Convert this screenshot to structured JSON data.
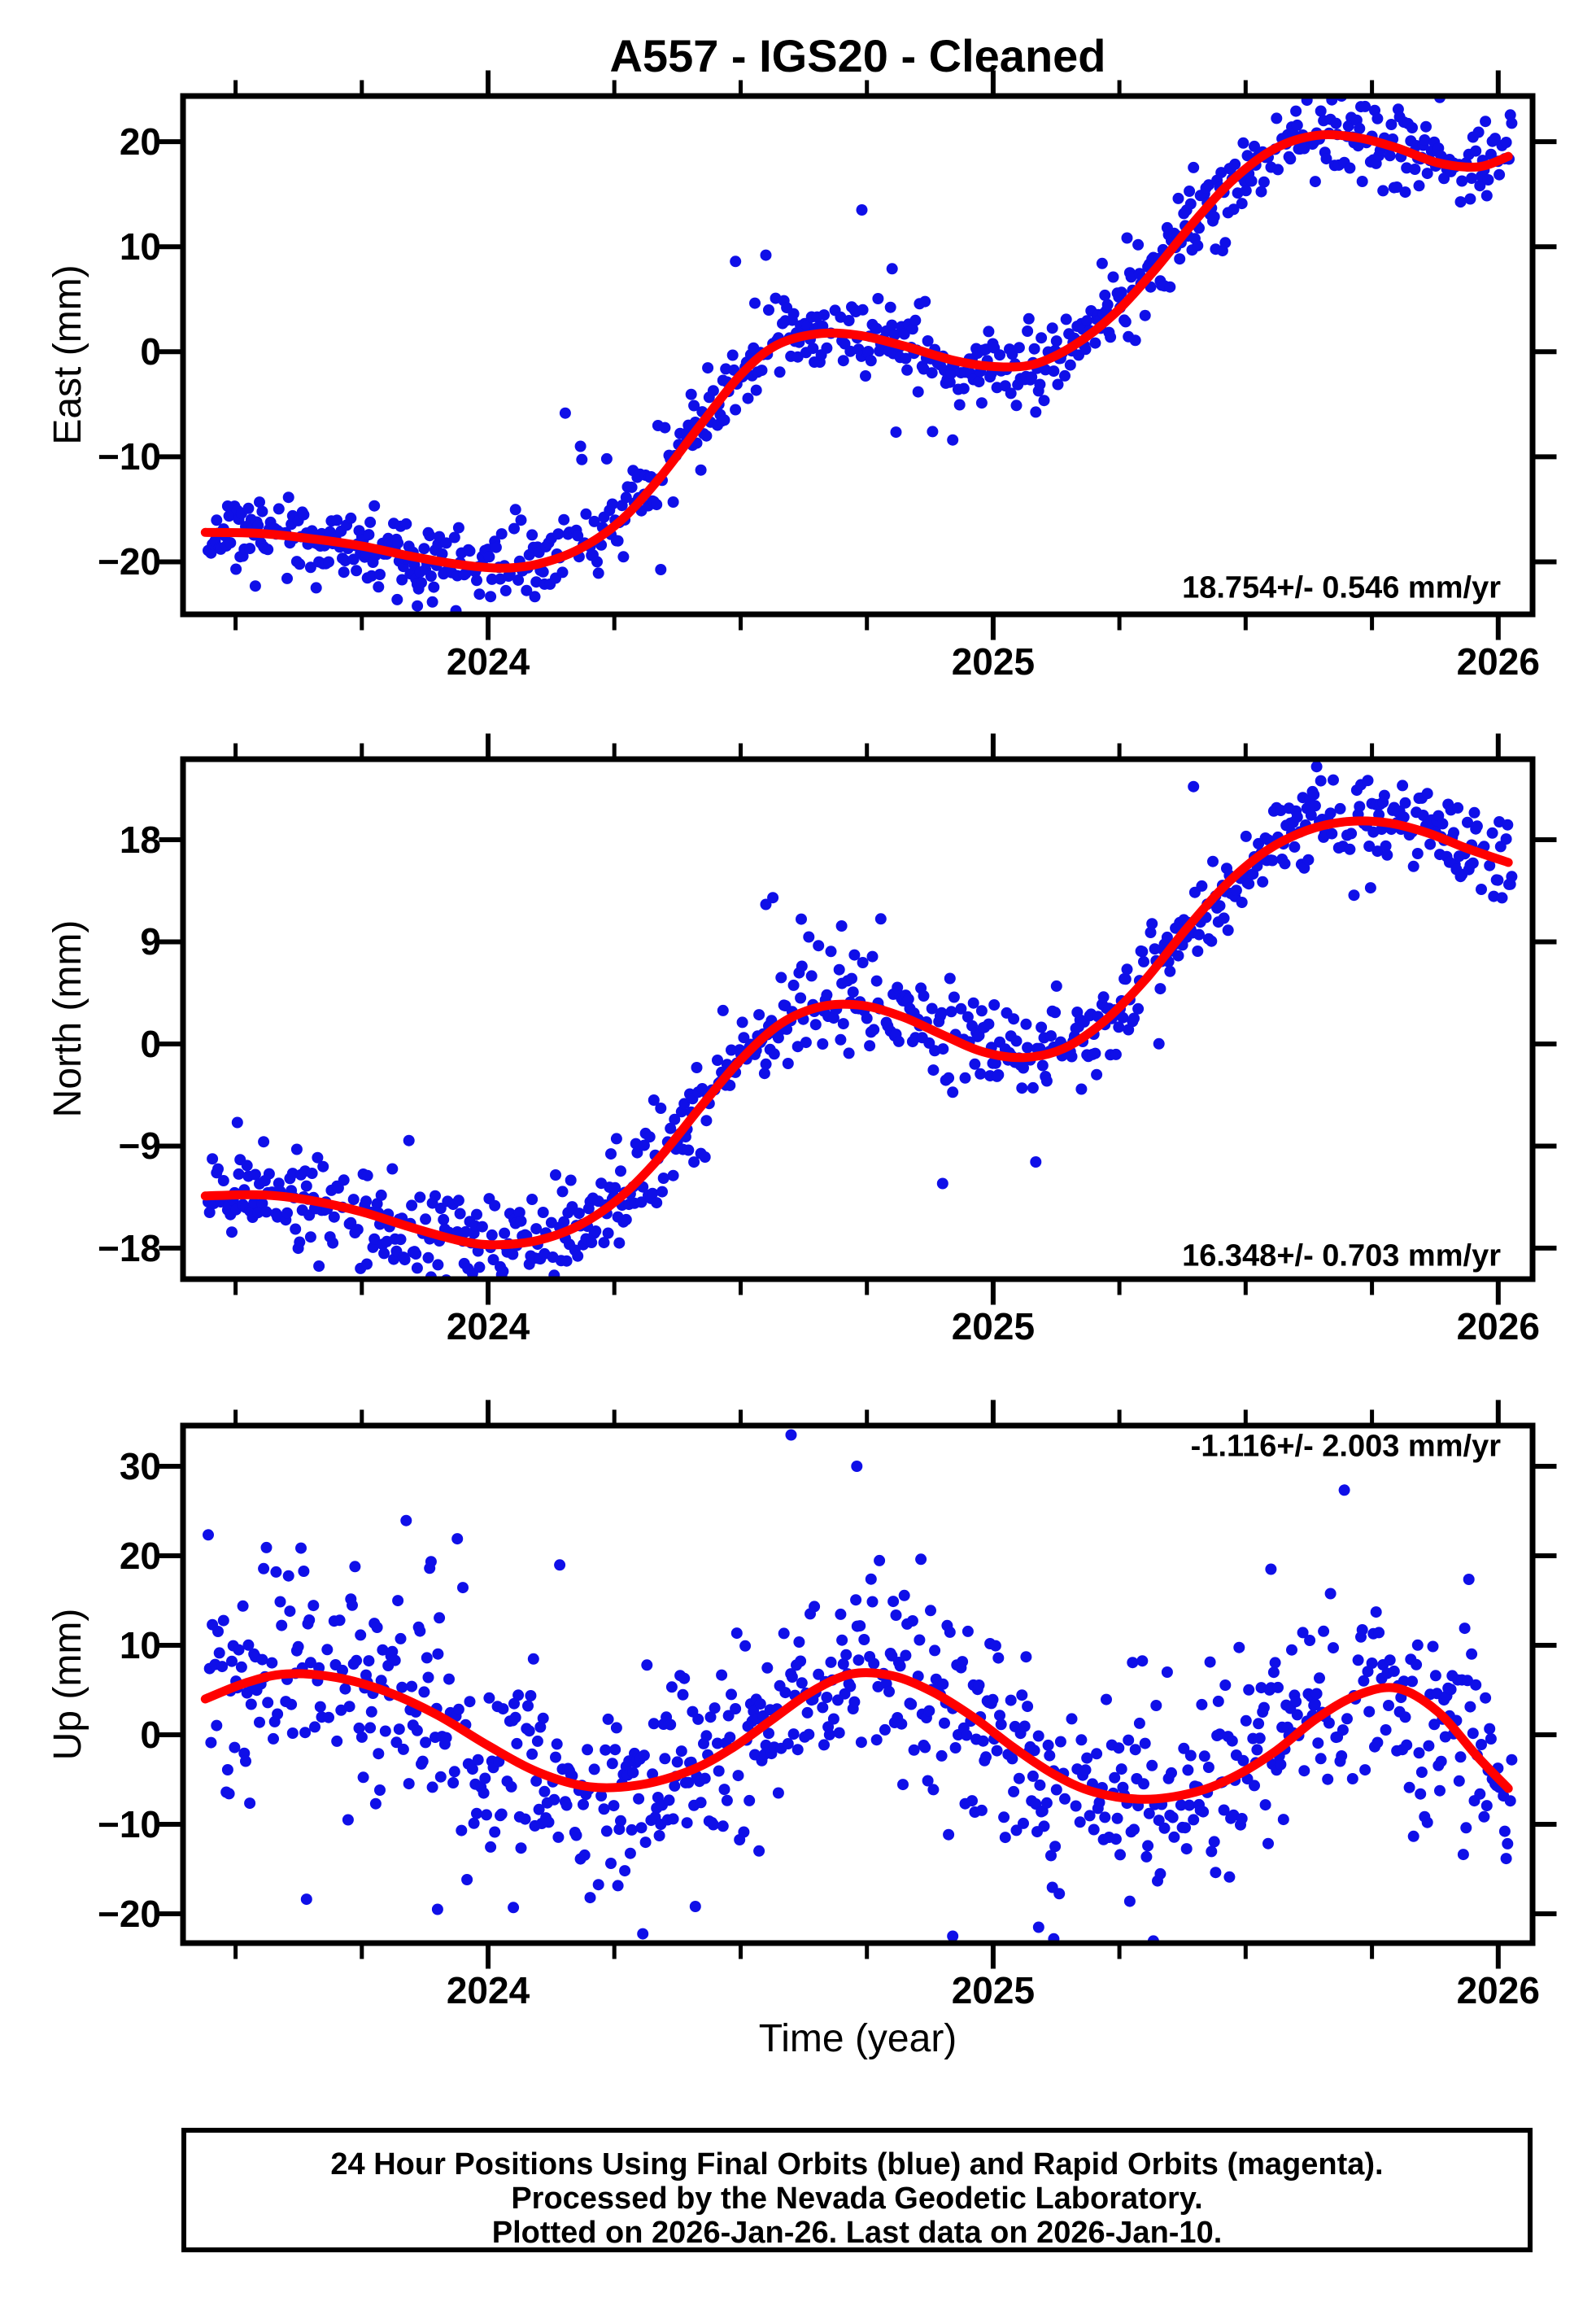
{
  "title": "A557  - IGS20 - Cleaned",
  "xlabel": "Time (year)",
  "colors": {
    "points": "#0f0fe8",
    "trend": "#ff0000",
    "frame": "#000000",
    "text": "#000000",
    "background": "#ffffff"
  },
  "footer": {
    "line1": "24 Hour Positions Using Final Orbits (blue) and Rapid Orbits (magenta).",
    "line2": "Processed by the Nevada Geodetic Laboratory.",
    "line3": "Plotted on 2026-Jan-26. Last data on 2026-Jan-10."
  },
  "chart_data": [
    {
      "type": "scatter",
      "name": "East",
      "ylabel": "East (mm)",
      "rate_label": "18.754+/- 0.546 mm/yr",
      "rate_position": "bottom-right",
      "xlim": [
        2023.396,
        2026.068
      ],
      "xticks": [
        2024,
        2025,
        2026
      ],
      "xtick_labels": [
        "2024",
        "2025",
        "2026"
      ],
      "x_minor_step": 0.25,
      "ylim": [
        -25.0,
        24.35
      ],
      "yticks": [
        20,
        10,
        0,
        -10,
        -20
      ],
      "ytick_labels": [
        "20",
        "10",
        "0",
        "−10",
        "−20"
      ],
      "trend_curve": [
        [
          2023.44,
          -17.2
        ],
        [
          2023.55,
          -17.3
        ],
        [
          2023.65,
          -17.8
        ],
        [
          2023.75,
          -18.5
        ],
        [
          2023.85,
          -19.5
        ],
        [
          2023.95,
          -20.3
        ],
        [
          2024.03,
          -20.6
        ],
        [
          2024.1,
          -20.2
        ],
        [
          2024.18,
          -18.8
        ],
        [
          2024.26,
          -16.2
        ],
        [
          2024.34,
          -12.0
        ],
        [
          2024.42,
          -7.0
        ],
        [
          2024.5,
          -2.2
        ],
        [
          2024.57,
          0.6
        ],
        [
          2024.65,
          1.7
        ],
        [
          2024.73,
          1.6
        ],
        [
          2024.82,
          0.6
        ],
        [
          2024.92,
          -0.8
        ],
        [
          2025.0,
          -1.4
        ],
        [
          2025.08,
          -1.2
        ],
        [
          2025.16,
          0.6
        ],
        [
          2025.24,
          3.6
        ],
        [
          2025.32,
          7.8
        ],
        [
          2025.4,
          12.5
        ],
        [
          2025.48,
          16.6
        ],
        [
          2025.56,
          19.4
        ],
        [
          2025.64,
          20.6
        ],
        [
          2025.72,
          20.4
        ],
        [
          2025.8,
          19.4
        ],
        [
          2025.88,
          18.0
        ],
        [
          2025.96,
          17.6
        ],
        [
          2026.02,
          18.6
        ]
      ],
      "scatter": {
        "t_start": 2023.446,
        "t_end": 2026.027,
        "samples_per_year": 365,
        "keep_fraction": 0.8,
        "sigma_mm": 1.8,
        "outlier_fraction": 0.06,
        "outlier_sigma_scale": 2.6,
        "seed": 11,
        "extra_points": [
          [
            2024.74,
            13.5
          ],
          [
            2024.49,
            8.6
          ],
          [
            2024.55,
            9.2
          ],
          [
            2024.88,
            -7.6
          ],
          [
            2024.92,
            -8.4
          ],
          [
            2023.82,
            -23.6
          ],
          [
            2023.86,
            -24.2
          ],
          [
            2024.8,
            7.9
          ]
        ]
      }
    },
    {
      "type": "scatter",
      "name": "North",
      "ylabel": "North (mm)",
      "rate_label": "16.348+/- 0.703 mm/yr",
      "rate_position": "bottom-right",
      "xlim": [
        2023.396,
        2026.068
      ],
      "xticks": [
        2024,
        2025,
        2026
      ],
      "xtick_labels": [
        "2024",
        "2025",
        "2026"
      ],
      "x_minor_step": 0.25,
      "ylim": [
        -20.73,
        25.1
      ],
      "yticks": [
        18,
        9,
        0,
        -9,
        -18
      ],
      "ytick_labels": [
        "18",
        "9",
        "0",
        "−9",
        "−18"
      ],
      "trend_curve": [
        [
          2023.44,
          -13.4
        ],
        [
          2023.55,
          -13.3
        ],
        [
          2023.65,
          -13.8
        ],
        [
          2023.75,
          -14.8
        ],
        [
          2023.85,
          -16.2
        ],
        [
          2023.95,
          -17.4
        ],
        [
          2024.02,
          -17.7
        ],
        [
          2024.1,
          -17.3
        ],
        [
          2024.18,
          -16.0
        ],
        [
          2024.26,
          -13.6
        ],
        [
          2024.34,
          -10.0
        ],
        [
          2024.42,
          -5.6
        ],
        [
          2024.5,
          -1.4
        ],
        [
          2024.58,
          1.8
        ],
        [
          2024.66,
          3.3
        ],
        [
          2024.74,
          3.4
        ],
        [
          2024.82,
          2.4
        ],
        [
          2024.9,
          0.8
        ],
        [
          2024.98,
          -0.7
        ],
        [
          2025.06,
          -1.2
        ],
        [
          2025.14,
          -0.4
        ],
        [
          2025.22,
          2.0
        ],
        [
          2025.3,
          5.6
        ],
        [
          2025.38,
          10.0
        ],
        [
          2025.46,
          14.0
        ],
        [
          2025.54,
          17.0
        ],
        [
          2025.62,
          18.8
        ],
        [
          2025.7,
          19.6
        ],
        [
          2025.78,
          19.5
        ],
        [
          2025.86,
          18.6
        ],
        [
          2025.94,
          17.2
        ],
        [
          2026.02,
          16.0
        ]
      ],
      "scatter": {
        "t_start": 2023.446,
        "t_end": 2026.027,
        "samples_per_year": 365,
        "keep_fraction": 0.8,
        "sigma_mm": 2.1,
        "outlier_fraction": 0.06,
        "outlier_sigma_scale": 2.4,
        "seed": 23,
        "extra_points": [
          [
            2024.55,
            12.3
          ],
          [
            2024.62,
            11.0
          ],
          [
            2024.7,
            10.4
          ],
          [
            2023.76,
            -19.4
          ],
          [
            2024.9,
            -12.3
          ],
          [
            2023.96,
            -19.8
          ]
        ]
      }
    },
    {
      "type": "scatter",
      "name": "Up",
      "ylabel": "Up (mm)",
      "rate_label": "-1.116+/- 2.003 mm/yr",
      "rate_position": "top-right",
      "xlim": [
        2023.396,
        2026.068
      ],
      "xticks": [
        2024,
        2025,
        2026
      ],
      "xtick_labels": [
        "2024",
        "2025",
        "2026"
      ],
      "x_minor_step": 0.25,
      "ylim": [
        -23.27,
        34.55
      ],
      "yticks": [
        30,
        20,
        10,
        0,
        -10,
        -20
      ],
      "ytick_labels": [
        "30",
        "20",
        "10",
        "0",
        "−10",
        "−20"
      ],
      "trend_curve": [
        [
          2023.44,
          4.0
        ],
        [
          2023.52,
          5.8
        ],
        [
          2023.6,
          6.8
        ],
        [
          2023.7,
          6.4
        ],
        [
          2023.8,
          4.8
        ],
        [
          2023.9,
          2.2
        ],
        [
          2024.0,
          -1.2
        ],
        [
          2024.1,
          -4.2
        ],
        [
          2024.2,
          -5.8
        ],
        [
          2024.3,
          -5.6
        ],
        [
          2024.4,
          -4.0
        ],
        [
          2024.48,
          -1.6
        ],
        [
          2024.56,
          1.6
        ],
        [
          2024.64,
          4.8
        ],
        [
          2024.72,
          6.8
        ],
        [
          2024.8,
          6.6
        ],
        [
          2024.88,
          4.8
        ],
        [
          2024.96,
          2.0
        ],
        [
          2025.04,
          -1.4
        ],
        [
          2025.12,
          -4.4
        ],
        [
          2025.2,
          -6.4
        ],
        [
          2025.3,
          -7.2
        ],
        [
          2025.4,
          -6.4
        ],
        [
          2025.48,
          -4.6
        ],
        [
          2025.56,
          -1.8
        ],
        [
          2025.64,
          1.8
        ],
        [
          2025.72,
          4.4
        ],
        [
          2025.8,
          5.2
        ],
        [
          2025.88,
          2.6
        ],
        [
          2025.96,
          -2.5
        ],
        [
          2026.02,
          -6.0
        ]
      ],
      "scatter": {
        "t_start": 2023.446,
        "t_end": 2026.027,
        "samples_per_year": 365,
        "keep_fraction": 0.8,
        "sigma_mm": 5.4,
        "outlier_fraction": 0.07,
        "outlier_sigma_scale": 2.1,
        "seed": 37,
        "extra_points": [
          [
            2024.6,
            33.5
          ],
          [
            2024.73,
            30.0
          ],
          [
            2023.9,
            -19.5
          ],
          [
            2024.92,
            -22.5
          ],
          [
            2025.09,
            -21.5
          ],
          [
            2025.12,
            -22.8
          ],
          [
            2024.05,
            -19.3
          ],
          [
            2025.55,
            18.5
          ]
        ]
      }
    }
  ]
}
